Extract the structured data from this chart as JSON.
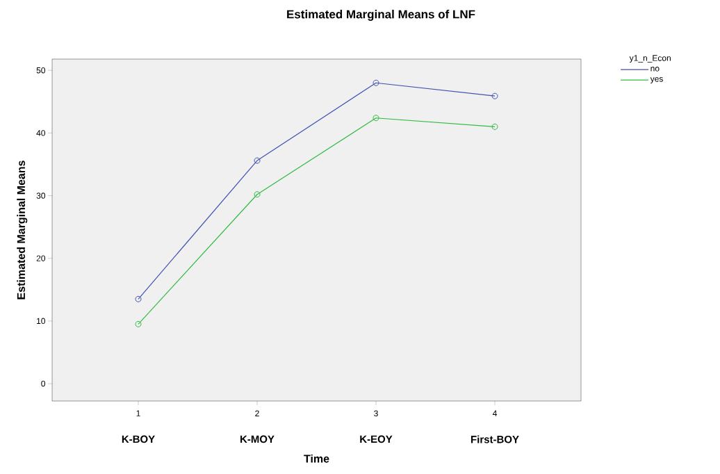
{
  "chart_data": {
    "type": "line",
    "title": "Estimated Marginal Means of LNF",
    "xlabel": "Time",
    "ylabel": "Estimated Marginal Means",
    "legend_title": "y1_n_Econ",
    "x": [
      1,
      2,
      3,
      4
    ],
    "annotations": [
      "K-BOY",
      "K-MOY",
      "K-EOY",
      "First-BOY"
    ],
    "series": [
      {
        "name": "no",
        "color": "#3f51b0",
        "values": [
          13.5,
          35.6,
          48.0,
          45.9
        ]
      },
      {
        "name": "yes",
        "color": "#2fbb3f",
        "values": [
          9.5,
          30.2,
          42.4,
          41.0
        ]
      }
    ],
    "xlim": [
      0.275,
      4.725
    ],
    "ylim": [
      -2.77,
      51.8
    ],
    "xticks": [
      1,
      2,
      3,
      4
    ],
    "yticks": [
      0,
      10,
      20,
      30,
      40,
      50
    ],
    "marker": "circle",
    "line_style": "solid",
    "legend": "top right",
    "grid": false
  }
}
